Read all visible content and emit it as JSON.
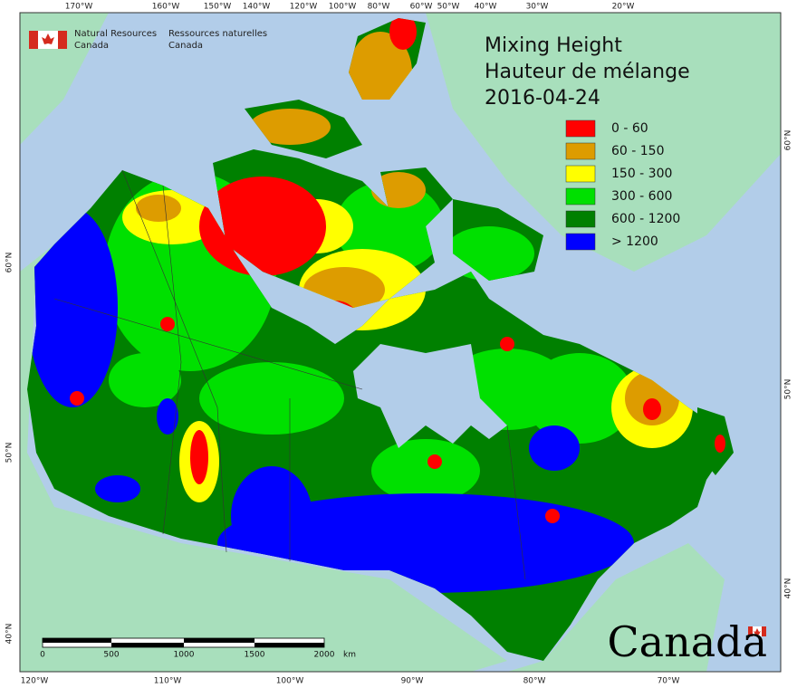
{
  "header": {
    "agency_en": [
      "Natural Resources",
      "Canada"
    ],
    "agency_fr": [
      "Ressources naturelles",
      "Canada"
    ]
  },
  "title": [
    "Mixing Height",
    "Hauteur de mélange",
    "2016-04-24"
  ],
  "legend": [
    {
      "label": "0 - 60",
      "color": "#ff0000"
    },
    {
      "label": "60 - 150",
      "color": "#dd9c00"
    },
    {
      "label": "150 - 300",
      "color": "#ffff00"
    },
    {
      "label": "300 - 600",
      "color": "#00e000"
    },
    {
      "label": "600 - 1200",
      "color": "#008000"
    },
    {
      "label": "> 1200",
      "color": "#0000ff"
    }
  ],
  "axes": {
    "top": [
      "170°W",
      "160°W",
      "150°W",
      "140°W",
      "120°W",
      "100°W",
      "80°W",
      "60°W",
      "50°W",
      "40°W",
      "30°W",
      "20°W"
    ],
    "bottom": [
      "120°W",
      "110°W",
      "100°W",
      "90°W",
      "80°W",
      "70°W"
    ],
    "left": [
      "60°N",
      "50°N",
      "40°N"
    ],
    "right": [
      "60°N",
      "50°N",
      "40°N"
    ]
  },
  "scale_bar": {
    "labels": [
      "0",
      "500",
      "1000",
      "1500",
      "2000"
    ],
    "unit": "km"
  },
  "wordmark": "Canada"
}
